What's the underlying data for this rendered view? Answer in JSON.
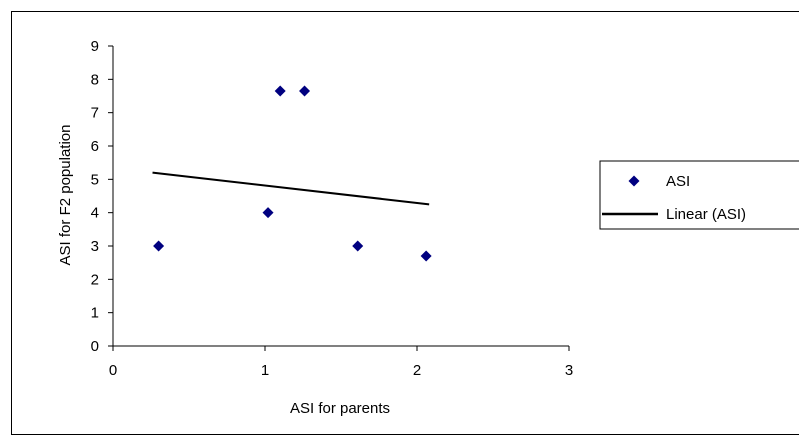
{
  "chart_data": {
    "type": "scatter",
    "xlabel": "ASI for parents",
    "ylabel": "ASI for F2 population",
    "xlim": [
      0,
      3
    ],
    "ylim": [
      0,
      9
    ],
    "xticks": [
      "0",
      "1",
      "2",
      "3"
    ],
    "yticks": [
      "0",
      "1",
      "2",
      "3",
      "4",
      "5",
      "6",
      "7",
      "8",
      "9"
    ],
    "grid": false,
    "legend_position": "right",
    "series": [
      {
        "name": "ASI",
        "marker": "diamond",
        "color": "#000080",
        "points": [
          {
            "x": 0.3,
            "y": 3.0
          },
          {
            "x": 1.02,
            "y": 4.0
          },
          {
            "x": 1.1,
            "y": 7.65
          },
          {
            "x": 1.26,
            "y": 7.65
          },
          {
            "x": 1.61,
            "y": 3.0
          },
          {
            "x": 2.06,
            "y": 2.7
          }
        ]
      },
      {
        "name": "Linear (ASI)",
        "type": "line",
        "color": "#000000",
        "points": [
          {
            "x": 0.26,
            "y": 5.2
          },
          {
            "x": 2.08,
            "y": 4.25
          }
        ]
      }
    ]
  }
}
